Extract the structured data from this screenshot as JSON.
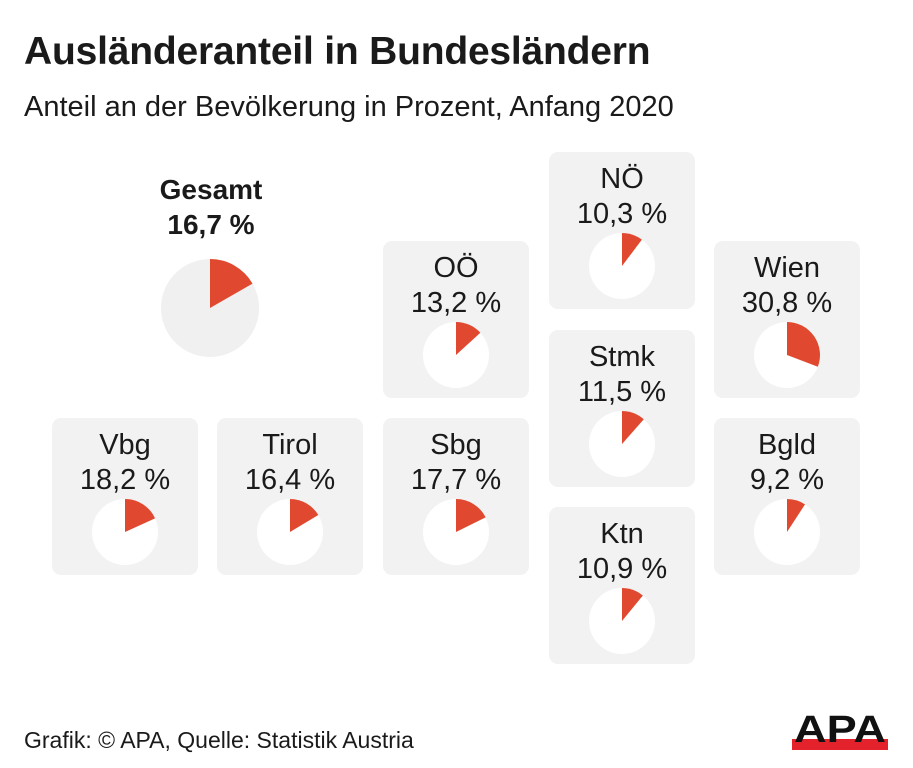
{
  "chart_data": {
    "type": "pie",
    "title": "Ausländeranteil in Bundesländern",
    "subtitle": "Anteil an der Bevölkerung in Prozent, Anfang 2020",
    "unit": "%",
    "total": {
      "label": "Gesamt",
      "value": 16.7,
      "value_label": "16,7 %"
    },
    "regions": [
      {
        "label": "NÖ",
        "value": 10.3,
        "value_label": "10,3 %"
      },
      {
        "label": "OÖ",
        "value": 13.2,
        "value_label": "13,2 %"
      },
      {
        "label": "Wien",
        "value": 30.8,
        "value_label": "30,8 %"
      },
      {
        "label": "Stmk",
        "value": 11.5,
        "value_label": "11,5 %"
      },
      {
        "label": "Vbg",
        "value": 18.2,
        "value_label": "18,2 %"
      },
      {
        "label": "Tirol",
        "value": 16.4,
        "value_label": "16,4 %"
      },
      {
        "label": "Sbg",
        "value": 17.7,
        "value_label": "17,7 %"
      },
      {
        "label": "Bgld",
        "value": 9.2,
        "value_label": "9,2 %"
      },
      {
        "label": "Ktn",
        "value": 10.9,
        "value_label": "10,9 %"
      }
    ]
  },
  "colors": {
    "slice": "#e0492f",
    "pie_bg_total": "#f0f0f0",
    "pie_bg_region": "#ffffff",
    "box_bg": "#f2f2f2",
    "logo_red": "#e3222b",
    "text": "#1a1a1a"
  },
  "footer": {
    "source": "Grafik: © APA, Quelle: Statistik Austria"
  },
  "logo": {
    "text": "APA"
  }
}
